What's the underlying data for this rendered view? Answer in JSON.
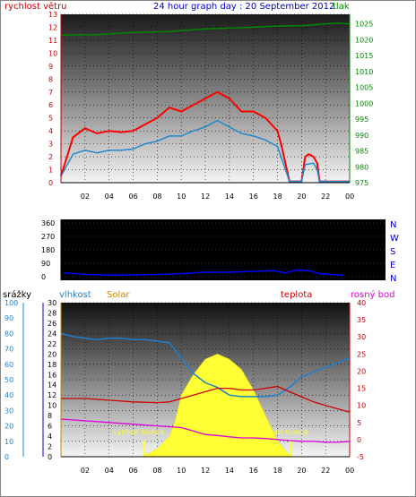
{
  "header": {
    "title": "24 hour graph day : 20 September 2012",
    "left_label": "rychlost větru",
    "right_label": "tlak"
  },
  "colors": {
    "wind": "#ff0000",
    "gust_avg": "#2288cc",
    "pressure": "#008800",
    "direction": "#0000ff",
    "rain": "#0000cc",
    "humidity": "#1f7fcf",
    "solar": "#ffff33",
    "temperature": "#cc0000",
    "dewpoint": "#dd00dd",
    "axis_cyan": "#1f7fcf",
    "axis_orange": "#cc8800",
    "axis_blue": "#0000cc"
  },
  "chart_data": [
    {
      "type": "line",
      "x_ticks": [
        "02",
        "04",
        "06",
        "08",
        "10",
        "12",
        "14",
        "16",
        "18",
        "20",
        "22",
        "00"
      ],
      "y_left_ticks": [
        "0",
        "1",
        "2",
        "3",
        "4",
        "5",
        "6",
        "7",
        "8",
        "9",
        "10",
        "11",
        "12",
        "13"
      ],
      "y_right_ticks": [
        "975",
        "980",
        "985",
        "990",
        "995",
        "1000",
        "1005",
        "1010",
        "1015",
        "1020",
        "1025"
      ],
      "ylim_left": [
        0,
        13
      ],
      "ylim_right": [
        975,
        1028
      ],
      "series": [
        {
          "name": "rychlost větru",
          "axis": "left",
          "x": [
            0,
            1,
            2,
            3,
            4,
            5,
            6,
            7,
            8,
            9,
            10,
            11,
            12,
            13,
            14,
            15,
            16,
            17,
            18,
            18.3,
            19,
            19.5,
            20,
            20.3,
            20.6,
            21,
            21.3,
            21.5,
            22,
            23,
            24
          ],
          "values": [
            0.5,
            3.5,
            4.2,
            3.8,
            4.0,
            3.9,
            4.0,
            4.5,
            5.0,
            5.8,
            5.5,
            6.0,
            6.5,
            7.0,
            6.5,
            5.5,
            5.5,
            5.0,
            4.0,
            3.0,
            0.1,
            0.1,
            0.1,
            2.0,
            2.2,
            2.0,
            1.5,
            0.1,
            0.1,
            0.1,
            0.1
          ]
        },
        {
          "name": "",
          "axis": "left",
          "x": [
            0,
            1,
            2,
            3,
            4,
            5,
            6,
            7,
            8,
            9,
            10,
            11,
            12,
            13,
            14,
            15,
            16,
            17,
            18,
            18.3,
            19,
            20,
            20.3,
            21,
            21.3,
            21.5,
            22,
            24
          ],
          "values": [
            0.5,
            2.2,
            2.5,
            2.3,
            2.5,
            2.5,
            2.6,
            3.0,
            3.2,
            3.6,
            3.6,
            4.0,
            4.3,
            4.8,
            4.3,
            3.8,
            3.6,
            3.3,
            2.8,
            2.0,
            0.1,
            0.1,
            1.4,
            1.5,
            1.0,
            0.1,
            0.1,
            0.1
          ]
        },
        {
          "name": "tlak",
          "axis": "right",
          "x": [
            0,
            3,
            6,
            9,
            12,
            15,
            18,
            20,
            21,
            22,
            23,
            24
          ],
          "values": [
            1021.5,
            1021.6,
            1022.3,
            1022.6,
            1023.4,
            1023.8,
            1024.3,
            1024.4,
            1024.7,
            1025.0,
            1025.2,
            1025.0
          ]
        }
      ]
    },
    {
      "type": "line",
      "right_labels": [
        "N",
        "W",
        "S",
        "E",
        "N"
      ],
      "y_left_ticks": [
        "0",
        "90",
        "180",
        "270",
        "360"
      ],
      "ylim": [
        0,
        360
      ],
      "series": [
        {
          "name": "",
          "x": [
            0,
            2,
            4,
            6,
            8,
            10,
            12,
            14,
            16,
            18,
            19,
            20,
            21,
            22,
            24
          ],
          "values": [
            25,
            15,
            10,
            12,
            15,
            20,
            30,
            30,
            35,
            40,
            25,
            45,
            40,
            20,
            10
          ]
        }
      ]
    },
    {
      "type": "line",
      "labels": {
        "rain": "srážky",
        "humidity": "vlhkost",
        "solar": "Solar",
        "temperature": "teplota",
        "dewpoint": "rosný bod"
      },
      "y_rain_ticks": [
        "0",
        "10",
        "20",
        "30",
        "40",
        "50",
        "60",
        "70",
        "80",
        "90",
        "100"
      ],
      "y_solar_ticks": [
        "0",
        "2",
        "4",
        "6",
        "8",
        "10",
        "12",
        "14",
        "16",
        "18",
        "20",
        "22",
        "24",
        "26",
        "28",
        "30"
      ],
      "y_right_ticks": [
        "-5",
        "0",
        "5",
        "10",
        "15",
        "20",
        "25",
        "30",
        "35",
        "40"
      ],
      "ylim_humidity": [
        0,
        100
      ],
      "ylim_temp": [
        -5,
        40
      ],
      "annotations": [
        "východ slunce",
        "západ slunce"
      ],
      "sunrise_hour": 6.9,
      "sunset_hour": 19.1,
      "series": [
        {
          "name": "vlhkost",
          "x": [
            0,
            1,
            2,
            3,
            4,
            5,
            6,
            7,
            8,
            9,
            10,
            11,
            12,
            13,
            14,
            15,
            16,
            17,
            18,
            19,
            20,
            21,
            22,
            23,
            24
          ],
          "values": [
            80,
            78,
            77,
            76,
            77,
            77,
            76,
            76,
            75,
            74,
            64,
            54,
            48,
            45,
            40,
            39,
            39,
            39,
            40,
            45,
            52,
            55,
            58,
            61,
            64
          ]
        },
        {
          "name": "Solar",
          "x": [
            0,
            6.9,
            7,
            8,
            9,
            9.5,
            10,
            11,
            12,
            13,
            14,
            15,
            16,
            17,
            18,
            19,
            19.1,
            24
          ],
          "values": [
            0,
            0,
            0.3,
            1.5,
            4,
            7,
            12,
            16,
            19,
            20,
            19,
            17,
            13,
            8,
            3,
            0.3,
            0,
            0
          ]
        },
        {
          "name": "teplota",
          "x": [
            0,
            2,
            4,
            6,
            8,
            9,
            10,
            11,
            12,
            13,
            14,
            15,
            16,
            17,
            18,
            19,
            20,
            21,
            22,
            23,
            24
          ],
          "values": [
            12,
            12,
            11.5,
            11,
            10.8,
            11,
            12,
            13,
            14,
            15,
            15,
            14.5,
            14.5,
            15,
            15.5,
            14,
            12.5,
            11,
            10,
            9,
            8
          ]
        },
        {
          "name": "rosný bod",
          "x": [
            0,
            2,
            4,
            6,
            8,
            10,
            11,
            12,
            13,
            14,
            15,
            16,
            17,
            18,
            19,
            20,
            21,
            22,
            23,
            24
          ],
          "values": [
            6,
            5.5,
            5,
            4.5,
            4,
            3.5,
            2.5,
            1.5,
            1.2,
            0.8,
            0.5,
            0.5,
            0.3,
            0,
            -0.3,
            -0.5,
            -0.5,
            -0.8,
            -0.8,
            -0.5
          ]
        }
      ]
    }
  ]
}
